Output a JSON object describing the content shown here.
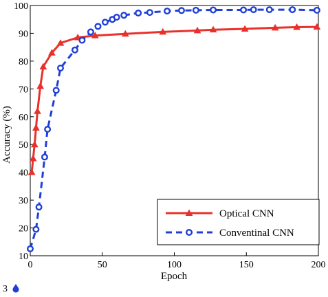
{
  "chart_data": {
    "type": "line",
    "xlabel": "Epoch",
    "ylabel": "Accuracy (%)",
    "xlim": [
      0,
      200
    ],
    "ylim": [
      10,
      100
    ],
    "x_ticks": [
      0,
      50,
      100,
      150,
      200
    ],
    "y_ticks": [
      10,
      20,
      30,
      40,
      50,
      60,
      70,
      80,
      90,
      100
    ],
    "grid": false,
    "legend_position": "bottom-right",
    "series": [
      {
        "name": "Optical CNN",
        "color": "#e8312a",
        "line_style": "solid",
        "marker": "filled-triangle",
        "x": [
          1,
          2,
          3,
          4,
          5,
          7,
          9,
          15,
          21,
          33,
          45,
          66,
          92,
          116,
          127,
          149,
          170,
          185,
          199
        ],
        "y": [
          40,
          45,
          50,
          56,
          62,
          71,
          78,
          83,
          86.5,
          88.5,
          89.2,
          89.8,
          90.5,
          91,
          91.3,
          91.6,
          92,
          92.2,
          92.3
        ]
      },
      {
        "name": "Conventinal CNN",
        "color": "#1f3fd6",
        "line_style": "dashed",
        "marker": "open-circle",
        "x": [
          0,
          4,
          6,
          10,
          12,
          18,
          21,
          31,
          36,
          42,
          47,
          52,
          57,
          60,
          65,
          75,
          83,
          95,
          105,
          115,
          127,
          148,
          155,
          166,
          182,
          199
        ],
        "y": [
          12.5,
          19.5,
          27.5,
          45.5,
          55.5,
          69.5,
          77.5,
          84,
          87.5,
          90.5,
          92.5,
          94,
          95,
          95.8,
          96.5,
          97.3,
          97.5,
          98,
          98.2,
          98.3,
          98.4,
          98.4,
          98.5,
          98.5,
          98.5,
          98.3
        ]
      }
    ]
  },
  "stray_label": "3"
}
